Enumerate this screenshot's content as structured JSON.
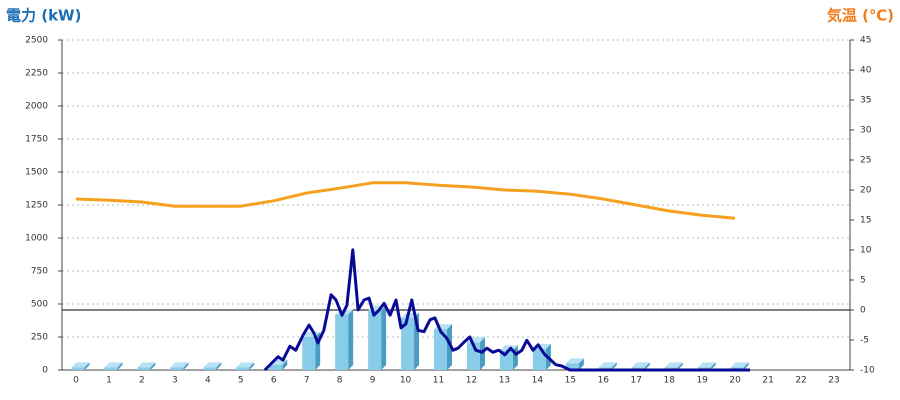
{
  "chart_data": {
    "type": "combo",
    "y_title": "電力 (kW)",
    "y2_title": "気温 (℃)",
    "categories": [
      "0",
      "1",
      "2",
      "3",
      "4",
      "5",
      "6",
      "7",
      "8",
      "9",
      "10",
      "11",
      "12",
      "13",
      "14",
      "15",
      "16",
      "17",
      "18",
      "19",
      "20",
      "21",
      "22",
      "23"
    ],
    "ylim": [
      0,
      2500
    ],
    "yticks": [
      0,
      250,
      500,
      750,
      1000,
      1250,
      1500,
      1750,
      2000,
      2250,
      2500
    ],
    "y2lim": [
      -10,
      45
    ],
    "y2ticks": [
      -10,
      -5,
      0,
      5,
      10,
      15,
      20,
      25,
      30,
      35,
      40,
      45
    ],
    "y2_reference": 0,
    "grid": true,
    "series": [
      {
        "type": "bar",
        "color": "#87cdea",
        "values": [
          20,
          20,
          20,
          20,
          20,
          20,
          40,
          250,
          420,
          450,
          395,
          310,
          210,
          150,
          160,
          50,
          20,
          20,
          20,
          20,
          20,
          null,
          null,
          null
        ]
      },
      {
        "type": "line",
        "color": "#0a0a96",
        "x": [
          5.73,
          6.13,
          6.28,
          6.49,
          6.67,
          6.89,
          7.07,
          7.22,
          7.34,
          7.52,
          7.74,
          7.89,
          8.07,
          8.22,
          8.4,
          8.56,
          8.74,
          8.89,
          9.04,
          9.2,
          9.35,
          9.53,
          9.71,
          9.86,
          10.01,
          10.19,
          10.38,
          10.56,
          10.74,
          10.89,
          11.07,
          11.25,
          11.44,
          11.59,
          11.77,
          11.95,
          12.13,
          12.32,
          12.47,
          12.65,
          12.83,
          13.01,
          13.19,
          13.35,
          13.53,
          13.68,
          13.87,
          14.02,
          14.23,
          14.41,
          14.56,
          14.74,
          14.99,
          20.45
        ],
        "values": [
          0,
          100,
          75,
          180,
          150,
          265,
          340,
          280,
          205,
          300,
          570,
          530,
          415,
          490,
          910,
          455,
          530,
          545,
          415,
          455,
          505,
          415,
          530,
          320,
          350,
          530,
          300,
          290,
          380,
          395,
          290,
          240,
          150,
          165,
          210,
          250,
          150,
          135,
          165,
          135,
          150,
          115,
          165,
          120,
          150,
          225,
          150,
          190,
          115,
          75,
          40,
          30,
          0,
          0
        ]
      },
      {
        "type": "line",
        "axis": "y2",
        "color": "#f5a01e",
        "values": [
          18.5,
          18.3,
          18.0,
          17.3,
          17.3,
          17.3,
          18.2,
          19.5,
          20.3,
          21.2,
          21.2,
          20.8,
          20.5,
          20.0,
          19.8,
          19.3,
          18.5,
          17.5,
          16.5,
          15.8,
          15.3,
          null,
          null,
          null
        ]
      }
    ]
  }
}
